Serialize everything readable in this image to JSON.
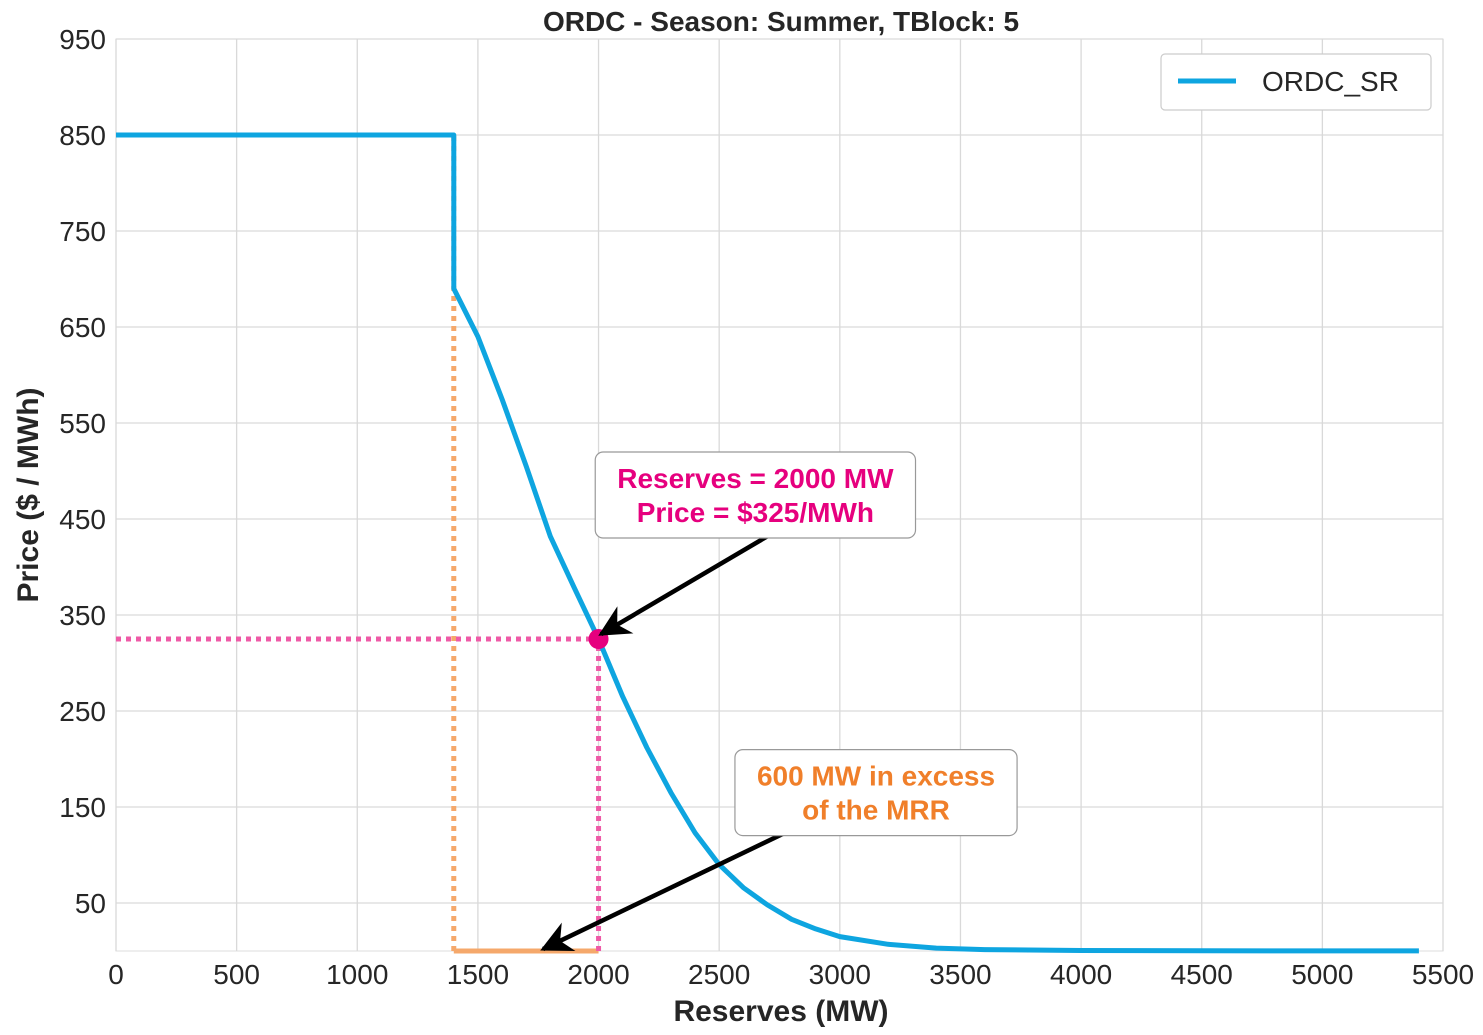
{
  "chart_data": {
    "type": "line",
    "title": "ORDC - Season: Summer, TBlock: 5",
    "xlabel": "Reserves (MW)",
    "ylabel": "Price ($ / MWh)",
    "xlim": [
      0,
      5500
    ],
    "ylim": [
      0,
      950
    ],
    "xticks": [
      0,
      500,
      1000,
      1500,
      2000,
      2500,
      3000,
      3500,
      4000,
      4500,
      5000,
      5500
    ],
    "yticks": [
      50,
      150,
      250,
      350,
      450,
      550,
      650,
      750,
      850,
      950
    ],
    "grid": true,
    "legend_position": "top-right",
    "series": [
      {
        "name": "ORDC_SR",
        "color": "#0ea5e0",
        "points": [
          [
            0,
            850
          ],
          [
            1400,
            850
          ],
          [
            1400,
            690
          ],
          [
            1500,
            640
          ],
          [
            1600,
            575
          ],
          [
            1700,
            505
          ],
          [
            1800,
            432
          ],
          [
            1900,
            378
          ],
          [
            2000,
            325
          ],
          [
            2100,
            265
          ],
          [
            2200,
            212
          ],
          [
            2300,
            165
          ],
          [
            2400,
            123
          ],
          [
            2500,
            90
          ],
          [
            2600,
            66
          ],
          [
            2700,
            48
          ],
          [
            2800,
            33
          ],
          [
            2900,
            23
          ],
          [
            3000,
            15
          ],
          [
            3200,
            7
          ],
          [
            3400,
            3
          ],
          [
            3600,
            1.5
          ],
          [
            4000,
            0.5
          ],
          [
            4500,
            0.2
          ],
          [
            5000,
            0.1
          ],
          [
            5400,
            0.1
          ]
        ]
      }
    ],
    "guides": [
      {
        "kind": "vertical-dotted",
        "color": "#f5a86b",
        "x": 1400,
        "y_from": 0,
        "y_to": 850
      },
      {
        "kind": "horizontal-solid",
        "color": "#f5a86b",
        "x_from": 1400,
        "x_to": 2000,
        "y": 0
      },
      {
        "kind": "vertical-dotted",
        "color": "#ef5aa7",
        "x": 2000,
        "y_from": 0,
        "y_to": 325
      },
      {
        "kind": "horizontal-dotted",
        "color": "#ef5aa7",
        "x_from": 0,
        "x_to": 2000,
        "y": 325
      }
    ],
    "highlight_point": {
      "x": 2000,
      "y": 325,
      "color": "#e6007e"
    },
    "annotations": [
      {
        "id": "price-callout",
        "lines": [
          "Reserves = 2000 MW",
          "Price = $325/MWh"
        ],
        "color": "#e6007e",
        "box_center": [
          2650,
          475
        ],
        "arrow_from": [
          2720,
          435
        ],
        "arrow_to": [
          2010,
          330
        ]
      },
      {
        "id": "excess-callout",
        "lines": [
          "600 MW in excess",
          "of the MRR"
        ],
        "color": "#f07f2a",
        "box_center": [
          3150,
          165
        ],
        "arrow_from": [
          2830,
          130
        ],
        "arrow_to": [
          1770,
          2
        ]
      }
    ]
  }
}
